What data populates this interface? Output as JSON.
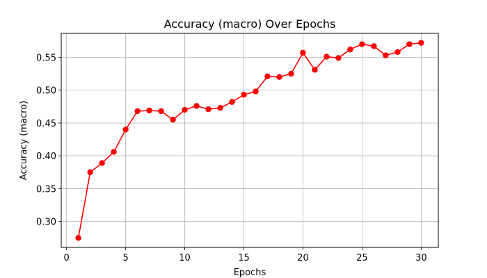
{
  "chart_data": {
    "type": "line",
    "title": "Accuracy (macro) Over Epochs",
    "xlabel": "Epochs",
    "ylabel": "Accuracy (macro)",
    "xlim": [
      -0.45,
      31.45
    ],
    "ylim": [
      0.2605,
      0.5865
    ],
    "xticks": [
      0,
      5,
      10,
      15,
      20,
      25,
      30
    ],
    "yticks": [
      0.3,
      0.35,
      0.4,
      0.45,
      0.5,
      0.55
    ],
    "grid": true,
    "series": [
      {
        "color": "#ff0000",
        "x": [
          1,
          2,
          3,
          4,
          5,
          6,
          7,
          8,
          9,
          10,
          11,
          12,
          13,
          14,
          15,
          16,
          17,
          18,
          19,
          20,
          21,
          22,
          23,
          24,
          25,
          26,
          27,
          28,
          29,
          30
        ],
        "values": [
          0.275,
          0.375,
          0.389,
          0.406,
          0.44,
          0.468,
          0.469,
          0.468,
          0.455,
          0.47,
          0.476,
          0.471,
          0.473,
          0.482,
          0.493,
          0.498,
          0.521,
          0.52,
          0.525,
          0.557,
          0.531,
          0.551,
          0.549,
          0.562,
          0.57,
          0.567,
          0.553,
          0.558,
          0.57,
          0.572
        ]
      }
    ]
  }
}
